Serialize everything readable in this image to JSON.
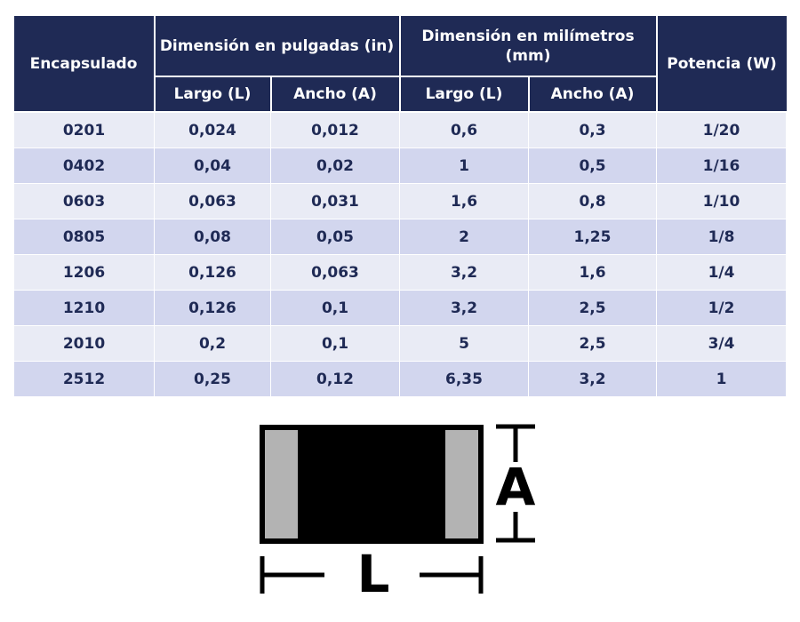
{
  "table": {
    "header": {
      "package": "Encapsulado",
      "inches": "Dimensión en pulgadas (in)",
      "millimeters": "Dimensión en milímetros (mm)",
      "power": "Potencia (W)",
      "subheaders": [
        "Largo (L)",
        "Ancho (A)",
        "Largo (L)",
        "Ancho (A)"
      ]
    },
    "rows": [
      [
        "0201",
        "0,024",
        "0,012",
        "0,6",
        "0,3",
        "1/20"
      ],
      [
        "0402",
        "0,04",
        "0,02",
        "1",
        "0,5",
        "1/16"
      ],
      [
        "0603",
        "0,063",
        "0,031",
        "1,6",
        "0,8",
        "1/10"
      ],
      [
        "0805",
        "0,08",
        "0,05",
        "2",
        "1,25",
        "1/8"
      ],
      [
        "1206",
        "0,126",
        "0,063",
        "3,2",
        "1,6",
        "1/4"
      ],
      [
        "1210",
        "0,126",
        "0,1",
        "3,2",
        "2,5",
        "1/2"
      ],
      [
        "2010",
        "0,2",
        "0,1",
        "5",
        "2,5",
        "3/4"
      ],
      [
        "2512",
        "0,25",
        "0,12",
        "6,35",
        "3,2",
        "1"
      ]
    ]
  },
  "diagram": {
    "height_label": "A",
    "length_label": "L"
  }
}
